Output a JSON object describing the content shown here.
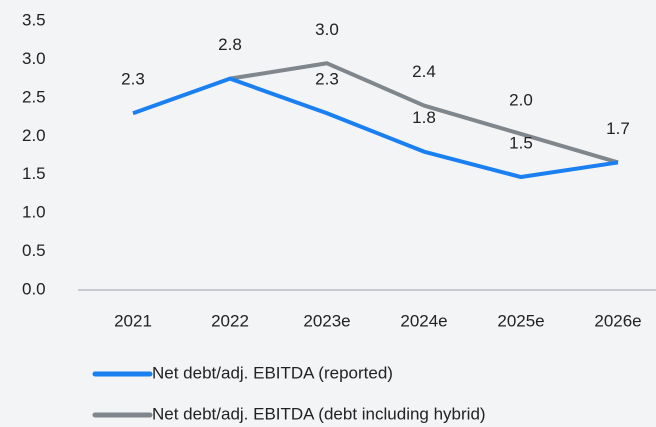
{
  "chart_data": {
    "type": "line",
    "categories": [
      "2021",
      "2022",
      "2023e",
      "2024e",
      "2025e",
      "2026e"
    ],
    "series": [
      {
        "name": "Net debt/adj. EBITDA (reported)",
        "color": "#1a7ff0",
        "values": [
          2.3,
          2.75,
          2.3,
          1.8,
          1.47,
          1.66
        ],
        "value_labels": [
          "2.3",
          "2.8",
          "2.3",
          "1.8",
          "1.5",
          "1.7"
        ]
      },
      {
        "name": "Net debt/adj. EBITDA (debt including hybrid)",
        "color": "#7f868c",
        "values": [
          null,
          2.75,
          2.95,
          2.4,
          2.03,
          1.66
        ],
        "value_labels": [
          null,
          null,
          "3.0",
          "2.4",
          "2.0",
          null
        ]
      }
    ],
    "ylim": [
      0,
      3.5
    ],
    "yticks": [
      {
        "value": 0,
        "label": "0.0"
      },
      0.5,
      {
        "value": 1,
        "label": "1.0"
      },
      1.5,
      {
        "value": 2,
        "label": "2.0"
      },
      2.5,
      {
        "value": 3,
        "label": "3.0"
      },
      3.5
    ],
    "grid": false
  }
}
